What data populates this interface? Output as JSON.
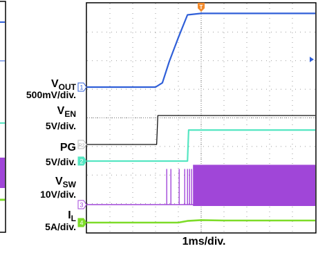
{
  "chart_data": {
    "type": "line",
    "title": "",
    "xlabel": "1ms/div.",
    "x_divisions": 10,
    "x_unit": "ms",
    "x_range": [
      0,
      10
    ],
    "trigger_marker": "T",
    "series": [
      {
        "name": "VOUT",
        "label_main": "V",
        "label_sub": "OUT",
        "scale": "500mV/div.",
        "channel": "1",
        "color": "#2f5fd8",
        "x": [
          0,
          1.0,
          2.0,
          3.0,
          3.3,
          3.6,
          4.0,
          4.4,
          5.0,
          6.0,
          7.0,
          8.0,
          9.0,
          10.0
        ],
        "y": [
          0,
          0,
          0,
          0,
          0.3,
          1.8,
          3.5,
          5.1,
          5.2,
          5.2,
          5.2,
          5.2,
          5.2,
          5.2
        ]
      },
      {
        "name": "VEN",
        "label_main": "V",
        "label_sub": "EN",
        "scale": "5V/div.",
        "channel": "R2",
        "color": "#111111",
        "x": [
          0,
          1.0,
          2.0,
          3.0,
          3.05,
          3.1,
          4.0,
          5.0,
          6.0,
          7.0,
          8.0,
          9.0,
          10.0
        ],
        "y": [
          0,
          0,
          0,
          0,
          0,
          3.3,
          3.3,
          3.3,
          3.3,
          3.3,
          3.3,
          3.3,
          3.3
        ]
      },
      {
        "name": "PG",
        "scale": "5V/div.",
        "channel": "2",
        "color": "#55e6c2",
        "x": [
          0,
          1.0,
          2.0,
          3.0,
          4.0,
          4.4,
          4.45,
          5.0,
          6.0,
          7.0,
          8.0,
          9.0,
          10.0
        ],
        "y": [
          0,
          0,
          0,
          0,
          0,
          0,
          3.3,
          3.3,
          3.3,
          3.3,
          3.3,
          3.3,
          3.3
        ]
      },
      {
        "name": "VSW",
        "label_main": "V",
        "label_sub": "SW",
        "scale": "10V/div.",
        "channel": "3",
        "color": "#a046d8",
        "x": [
          0,
          1.0,
          2.0,
          3.0,
          3.6,
          4.4,
          10.0
        ],
        "y": [
          0,
          0,
          0,
          0,
          0,
          0,
          0
        ],
        "switching_start": 4.4,
        "switching_amplitude": 12
      },
      {
        "name": "IL",
        "label_main": "I",
        "label_sub": "L",
        "scale": "5A/div.",
        "channel": "4",
        "color": "#7ddc28",
        "x": [
          0,
          1.0,
          2.0,
          3.0,
          4.0,
          4.4,
          5.0,
          6.0,
          7.0,
          8.0,
          9.0,
          10.0
        ],
        "y": [
          0,
          0,
          0,
          0,
          0,
          0.4,
          0.6,
          0.5,
          0.5,
          0.5,
          0.5,
          0.5
        ]
      }
    ],
    "grid": true
  },
  "labels": {
    "vout_main": "V",
    "vout_sub": "OUT",
    "vout_scale": "500mV/div.",
    "ven_main": "V",
    "ven_sub": "EN",
    "ven_scale": "5V/div.",
    "pg_main": "PG",
    "pg_scale": "5V/div.",
    "vsw_main": "V",
    "vsw_sub": "SW",
    "vsw_scale": "10V/div.",
    "il_main": "I",
    "il_sub": "L",
    "il_scale": "5A/div.",
    "xlabel": "1ms/div."
  }
}
